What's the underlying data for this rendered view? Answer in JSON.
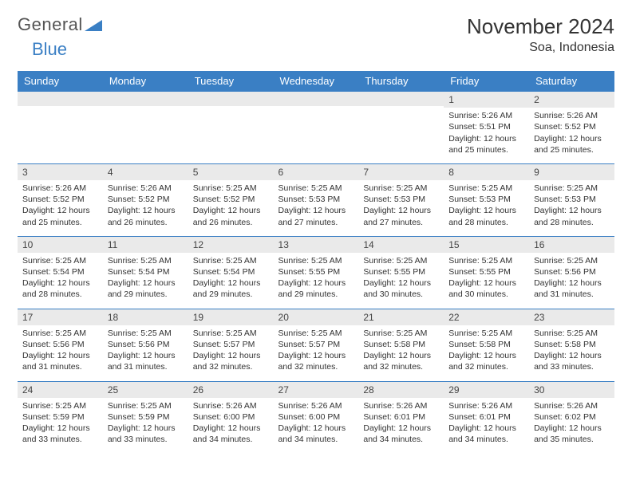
{
  "brand": {
    "first": "General",
    "second": "Blue"
  },
  "title": "November 2024",
  "location": "Soa, Indonesia",
  "colors": {
    "accent": "#3a7fc4",
    "header_bg": "#3a7fc4",
    "header_text": "#ffffff",
    "daynum_bg": "#eaeaea",
    "text": "#333333",
    "background": "#ffffff"
  },
  "day_headers": [
    "Sunday",
    "Monday",
    "Tuesday",
    "Wednesday",
    "Thursday",
    "Friday",
    "Saturday"
  ],
  "weeks": [
    [
      {
        "n": "",
        "lines": []
      },
      {
        "n": "",
        "lines": []
      },
      {
        "n": "",
        "lines": []
      },
      {
        "n": "",
        "lines": []
      },
      {
        "n": "",
        "lines": []
      },
      {
        "n": "1",
        "lines": [
          "Sunrise: 5:26 AM",
          "Sunset: 5:51 PM",
          "Daylight: 12 hours and 25 minutes."
        ]
      },
      {
        "n": "2",
        "lines": [
          "Sunrise: 5:26 AM",
          "Sunset: 5:52 PM",
          "Daylight: 12 hours and 25 minutes."
        ]
      }
    ],
    [
      {
        "n": "3",
        "lines": [
          "Sunrise: 5:26 AM",
          "Sunset: 5:52 PM",
          "Daylight: 12 hours and 25 minutes."
        ]
      },
      {
        "n": "4",
        "lines": [
          "Sunrise: 5:26 AM",
          "Sunset: 5:52 PM",
          "Daylight: 12 hours and 26 minutes."
        ]
      },
      {
        "n": "5",
        "lines": [
          "Sunrise: 5:25 AM",
          "Sunset: 5:52 PM",
          "Daylight: 12 hours and 26 minutes."
        ]
      },
      {
        "n": "6",
        "lines": [
          "Sunrise: 5:25 AM",
          "Sunset: 5:53 PM",
          "Daylight: 12 hours and 27 minutes."
        ]
      },
      {
        "n": "7",
        "lines": [
          "Sunrise: 5:25 AM",
          "Sunset: 5:53 PM",
          "Daylight: 12 hours and 27 minutes."
        ]
      },
      {
        "n": "8",
        "lines": [
          "Sunrise: 5:25 AM",
          "Sunset: 5:53 PM",
          "Daylight: 12 hours and 28 minutes."
        ]
      },
      {
        "n": "9",
        "lines": [
          "Sunrise: 5:25 AM",
          "Sunset: 5:53 PM",
          "Daylight: 12 hours and 28 minutes."
        ]
      }
    ],
    [
      {
        "n": "10",
        "lines": [
          "Sunrise: 5:25 AM",
          "Sunset: 5:54 PM",
          "Daylight: 12 hours and 28 minutes."
        ]
      },
      {
        "n": "11",
        "lines": [
          "Sunrise: 5:25 AM",
          "Sunset: 5:54 PM",
          "Daylight: 12 hours and 29 minutes."
        ]
      },
      {
        "n": "12",
        "lines": [
          "Sunrise: 5:25 AM",
          "Sunset: 5:54 PM",
          "Daylight: 12 hours and 29 minutes."
        ]
      },
      {
        "n": "13",
        "lines": [
          "Sunrise: 5:25 AM",
          "Sunset: 5:55 PM",
          "Daylight: 12 hours and 29 minutes."
        ]
      },
      {
        "n": "14",
        "lines": [
          "Sunrise: 5:25 AM",
          "Sunset: 5:55 PM",
          "Daylight: 12 hours and 30 minutes."
        ]
      },
      {
        "n": "15",
        "lines": [
          "Sunrise: 5:25 AM",
          "Sunset: 5:55 PM",
          "Daylight: 12 hours and 30 minutes."
        ]
      },
      {
        "n": "16",
        "lines": [
          "Sunrise: 5:25 AM",
          "Sunset: 5:56 PM",
          "Daylight: 12 hours and 31 minutes."
        ]
      }
    ],
    [
      {
        "n": "17",
        "lines": [
          "Sunrise: 5:25 AM",
          "Sunset: 5:56 PM",
          "Daylight: 12 hours and 31 minutes."
        ]
      },
      {
        "n": "18",
        "lines": [
          "Sunrise: 5:25 AM",
          "Sunset: 5:56 PM",
          "Daylight: 12 hours and 31 minutes."
        ]
      },
      {
        "n": "19",
        "lines": [
          "Sunrise: 5:25 AM",
          "Sunset: 5:57 PM",
          "Daylight: 12 hours and 32 minutes."
        ]
      },
      {
        "n": "20",
        "lines": [
          "Sunrise: 5:25 AM",
          "Sunset: 5:57 PM",
          "Daylight: 12 hours and 32 minutes."
        ]
      },
      {
        "n": "21",
        "lines": [
          "Sunrise: 5:25 AM",
          "Sunset: 5:58 PM",
          "Daylight: 12 hours and 32 minutes."
        ]
      },
      {
        "n": "22",
        "lines": [
          "Sunrise: 5:25 AM",
          "Sunset: 5:58 PM",
          "Daylight: 12 hours and 32 minutes."
        ]
      },
      {
        "n": "23",
        "lines": [
          "Sunrise: 5:25 AM",
          "Sunset: 5:58 PM",
          "Daylight: 12 hours and 33 minutes."
        ]
      }
    ],
    [
      {
        "n": "24",
        "lines": [
          "Sunrise: 5:25 AM",
          "Sunset: 5:59 PM",
          "Daylight: 12 hours and 33 minutes."
        ]
      },
      {
        "n": "25",
        "lines": [
          "Sunrise: 5:25 AM",
          "Sunset: 5:59 PM",
          "Daylight: 12 hours and 33 minutes."
        ]
      },
      {
        "n": "26",
        "lines": [
          "Sunrise: 5:26 AM",
          "Sunset: 6:00 PM",
          "Daylight: 12 hours and 34 minutes."
        ]
      },
      {
        "n": "27",
        "lines": [
          "Sunrise: 5:26 AM",
          "Sunset: 6:00 PM",
          "Daylight: 12 hours and 34 minutes."
        ]
      },
      {
        "n": "28",
        "lines": [
          "Sunrise: 5:26 AM",
          "Sunset: 6:01 PM",
          "Daylight: 12 hours and 34 minutes."
        ]
      },
      {
        "n": "29",
        "lines": [
          "Sunrise: 5:26 AM",
          "Sunset: 6:01 PM",
          "Daylight: 12 hours and 34 minutes."
        ]
      },
      {
        "n": "30",
        "lines": [
          "Sunrise: 5:26 AM",
          "Sunset: 6:02 PM",
          "Daylight: 12 hours and 35 minutes."
        ]
      }
    ]
  ]
}
